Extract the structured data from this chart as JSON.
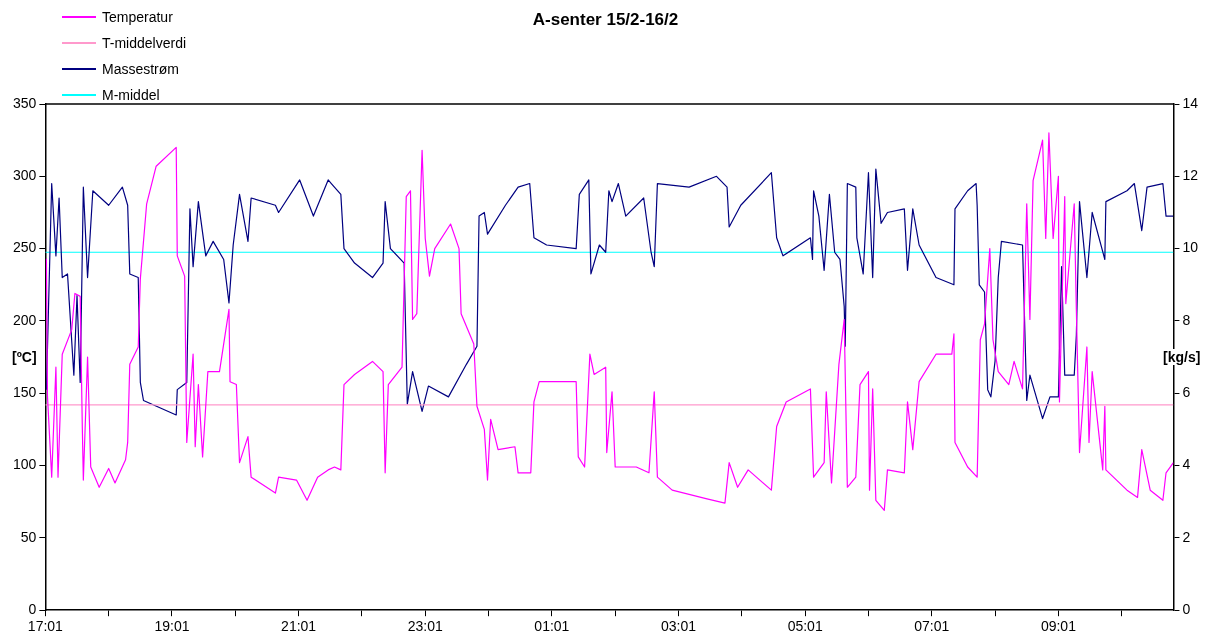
{
  "chart_data": {
    "type": "line",
    "title": "A-senter 15/2-16/2",
    "ylabel": "[ºC]",
    "y2label": "[kg/s]",
    "xlim": [
      "--02-15T17:01",
      "--02-16T10:50"
    ],
    "xticks": [
      {
        "value": "--02-15T17:01",
        "label": "17:01"
      },
      {
        "value": "--02-15T18:01",
        "label": null
      },
      {
        "value": "--02-15T19:01",
        "label": "19:01"
      },
      {
        "value": "--02-15T20:01",
        "label": null
      },
      {
        "value": "--02-15T21:01",
        "label": "21:01"
      },
      {
        "value": "--02-15T22:01",
        "label": null
      },
      {
        "value": "--02-15T23:01",
        "label": "23:01"
      },
      {
        "value": "--02-16T00:01",
        "label": null
      },
      {
        "value": "--02-16T01:01",
        "label": "01:01"
      },
      {
        "value": "--02-16T02:01",
        "label": null
      },
      {
        "value": "--02-16T03:01",
        "label": "03:01"
      },
      {
        "value": "--02-16T04:01",
        "label": null
      },
      {
        "value": "--02-16T05:01",
        "label": "05:01"
      },
      {
        "value": "--02-16T06:01",
        "label": null
      },
      {
        "value": "--02-16T07:01",
        "label": "07:01"
      },
      {
        "value": "--02-16T08:01",
        "label": null
      },
      {
        "value": "--02-16T09:01",
        "label": "09:01"
      },
      {
        "value": "--02-16T10:01",
        "label": null
      }
    ],
    "ylim": [
      0,
      350
    ],
    "yticks": [
      0,
      50,
      100,
      150,
      200,
      250,
      300,
      350
    ],
    "y2lim": [
      0,
      14
    ],
    "y2ticks": [
      0,
      2,
      4,
      6,
      8,
      10,
      12,
      14
    ],
    "grid": false,
    "legend": "top left",
    "marker": "none",
    "line_style": "solid",
    "series": [
      {
        "name": "Temperatur",
        "color": "#ff00ff",
        "x": [
          "--02-15T17:02",
          "--02-15T17:03",
          "--02-15T17:07",
          "--02-15T17:11",
          "--02-15T17:13",
          "--02-15T17:17",
          "--02-15T17:26",
          "--02-15T17:29",
          "--02-15T17:34",
          "--02-15T17:36",
          "--02-15T17:37",
          "--02-15T17:41",
          "--02-15T17:44",
          "--02-15T17:52",
          "--02-15T18:01",
          "--02-15T18:07",
          "--02-15T18:17",
          "--02-15T18:19",
          "--02-15T18:21",
          "--02-15T18:29",
          "--02-15T18:31",
          "--02-15T18:37",
          "--02-15T18:46",
          "--02-15T19:05",
          "--02-15T19:06",
          "--02-15T19:13",
          "--02-15T19:15",
          "--02-15T19:21",
          "--02-15T19:23",
          "--02-15T19:26",
          "--02-15T19:30",
          "--02-15T19:35",
          "--02-15T19:46",
          "--02-15T19:55",
          "--02-15T19:56",
          "--02-15T20:02",
          "--02-15T20:05",
          "--02-15T20:13",
          "--02-15T20:16",
          "--02-15T20:39",
          "--02-15T20:42",
          "--02-15T20:59",
          "--02-15T21:09",
          "--02-15T21:19",
          "--02-15T21:29",
          "--02-15T21:35",
          "--02-15T21:41",
          "--02-15T21:44",
          "--02-15T21:54",
          "--02-15T22:11",
          "--02-15T22:21",
          "--02-15T22:23",
          "--02-15T22:26",
          "--02-15T22:39",
          "--02-15T22:43",
          "--02-15T22:47",
          "--02-15T22:49",
          "--02-15T22:53",
          "--02-15T22:58",
          "--02-15T23:01",
          "--02-15T23:05",
          "--02-15T23:10",
          "--02-15T23:25",
          "--02-15T23:33",
          "--02-15T23:35",
          "--02-15T23:47",
          "--02-15T23:50",
          "--02-15T23:57",
          "--02-16T00:00",
          "--02-16T00:03",
          "--02-16T00:10",
          "--02-16T00:26",
          "--02-16T00:29",
          "--02-16T00:41",
          "--02-16T00:44",
          "--02-16T00:49",
          "--02-16T01:12",
          "--02-16T01:24",
          "--02-16T01:26",
          "--02-16T01:32",
          "--02-16T01:37",
          "--02-16T01:41",
          "--02-16T01:52",
          "--02-16T01:53",
          "--02-16T01:58",
          "--02-16T02:01",
          "--02-16T02:21",
          "--02-16T02:33",
          "--02-16T02:38",
          "--02-16T02:41",
          "--02-16T02:55",
          "--02-16T03:28",
          "--02-16T03:45",
          "--02-16T03:49",
          "--02-16T03:57",
          "--02-16T04:07",
          "--02-16T04:29",
          "--02-16T04:34",
          "--02-16T04:43",
          "--02-16T05:06",
          "--02-16T05:09",
          "--02-16T05:19",
          "--02-16T05:21",
          "--02-16T05:26",
          "--02-16T05:33",
          "--02-16T05:38",
          "--02-16T05:41",
          "--02-16T05:49",
          "--02-16T05:53",
          "--02-16T06:01",
          "--02-16T06:02",
          "--02-16T06:05",
          "--02-16T06:08",
          "--02-16T06:16",
          "--02-16T06:19",
          "--02-16T06:35",
          "--02-16T06:38",
          "--02-16T06:43",
          "--02-16T06:49",
          "--02-16T07:05",
          "--02-16T07:20",
          "--02-16T07:22",
          "--02-16T07:23",
          "--02-16T07:35",
          "--02-16T07:44",
          "--02-16T07:47",
          "--02-16T07:51",
          "--02-16T07:56",
          "--02-16T07:59",
          "--02-16T08:04",
          "--02-16T08:14",
          "--02-16T08:19",
          "--02-16T08:27",
          "--02-16T08:31",
          "--02-16T08:34",
          "--02-16T08:37",
          "--02-16T08:46",
          "--02-16T08:49",
          "--02-16T08:52",
          "--02-16T08:56",
          "--02-16T09:01",
          "--02-16T09:02",
          "--02-16T09:07",
          "--02-16T09:08",
          "--02-16T09:16",
          "--02-16T09:18",
          "--02-16T09:21",
          "--02-16T09:28",
          "--02-16T09:30",
          "--02-16T09:33",
          "--02-16T09:43",
          "--02-16T09:45",
          "--02-16T09:46",
          "--02-16T10:06",
          "--02-16T10:16",
          "--02-16T10:20",
          "--02-16T10:28",
          "--02-16T10:40",
          "--02-16T10:43",
          "--02-16T10:50"
        ],
        "values": [
          243,
          148,
          92,
          168,
          92,
          177,
          194,
          219,
          217,
          127,
          90,
          175,
          99,
          85,
          98,
          88,
          104,
          116,
          170,
          182,
          229,
          281,
          307,
          320,
          245,
          231,
          116,
          177,
          113,
          156,
          106,
          165,
          165,
          208,
          158,
          156,
          102,
          120,
          92,
          81,
          92,
          90,
          76,
          92,
          97,
          99,
          97,
          156,
          163,
          172,
          165,
          95,
          156,
          168,
          286,
          290,
          201,
          205,
          318,
          257,
          231,
          250,
          267,
          250,
          205,
          184,
          141,
          125,
          90,
          132,
          111,
          113,
          95,
          95,
          144,
          158,
          158,
          158,
          106,
          99,
          177,
          163,
          168,
          109,
          151,
          99,
          99,
          95,
          151,
          92,
          83,
          77,
          74,
          102,
          85,
          97,
          83,
          127,
          144,
          153,
          92,
          102,
          151,
          88,
          170,
          201,
          85,
          92,
          156,
          165,
          83,
          153,
          76,
          69,
          97,
          95,
          144,
          111,
          158,
          177,
          177,
          191,
          116,
          99,
          92,
          187,
          198,
          250,
          187,
          165,
          156,
          172,
          153,
          281,
          201,
          297,
          325,
          257,
          330,
          257,
          300,
          144,
          286,
          212,
          281,
          208,
          109,
          182,
          116,
          165,
          97,
          141,
          97,
          83,
          78,
          111,
          83,
          76,
          95,
          102
        ]
      },
      {
        "name": "T-middelverdi",
        "color": "#ff99cc",
        "x": [
          "--02-15T17:01",
          "--02-16T10:50"
        ],
        "values": [
          142,
          142
        ]
      },
      {
        "name": "Massestrøm",
        "color": "#000080",
        "axis": "y2",
        "x": [
          "--02-15T17:02",
          "--02-15T17:07",
          "--02-15T17:11",
          "--02-15T17:14",
          "--02-15T17:17",
          "--02-15T17:22",
          "--02-15T17:28",
          "--02-15T17:31",
          "--02-15T17:34",
          "--02-15T17:37",
          "--02-15T17:41",
          "--02-15T17:46",
          "--02-15T18:01",
          "--02-15T18:14",
          "--02-15T18:19",
          "--02-15T18:21",
          "--02-15T18:29",
          "--02-15T18:31",
          "--02-15T18:34",
          "--02-15T19:05",
          "--02-15T19:06",
          "--02-15T19:15",
          "--02-15T19:18",
          "--02-15T19:21",
          "--02-15T19:26",
          "--02-15T19:33",
          "--02-15T19:40",
          "--02-15T19:50",
          "--02-15T19:55",
          "--02-15T19:59",
          "--02-15T20:05",
          "--02-15T20:13",
          "--02-15T20:16",
          "--02-15T20:39",
          "--02-15T20:42",
          "--02-15T21:02",
          "--02-15T21:15",
          "--02-15T21:29",
          "--02-15T21:32",
          "--02-15T21:41",
          "--02-15T21:44",
          "--02-15T21:54",
          "--02-15T22:11",
          "--02-15T22:21",
          "--02-15T22:23",
          "--02-15T22:28",
          "--02-15T22:41",
          "--02-15T22:44",
          "--02-15T22:49",
          "--02-15T22:58",
          "--02-15T23:04",
          "--02-15T23:23",
          "--02-15T23:40",
          "--02-15T23:50",
          "--02-15T23:52",
          "--02-15T23:57",
          "--02-16T00:00",
          "--02-16T00:17",
          "--02-16T00:29",
          "--02-16T00:40",
          "--02-16T00:44",
          "--02-16T00:56",
          "--02-16T01:24",
          "--02-16T01:27",
          "--02-16T01:36",
          "--02-16T01:38",
          "--02-16T01:46",
          "--02-16T01:52",
          "--02-16T01:55",
          "--02-16T01:58",
          "--02-16T02:04",
          "--02-16T02:11",
          "--02-16T02:28",
          "--02-16T02:35",
          "--02-16T02:38",
          "--02-16T02:41",
          "--02-16T03:11",
          "--02-16T03:37",
          "--02-16T03:47",
          "--02-16T03:49",
          "--02-16T04:00",
          "--02-16T04:29",
          "--02-16T04:34",
          "--02-16T04:40",
          "--02-16T05:06",
          "--02-16T05:08",
          "--02-16T05:09",
          "--02-16T05:14",
          "--02-16T05:19",
          "--02-16T05:24",
          "--02-16T05:29",
          "--02-16T05:34",
          "--02-16T05:38",
          "--02-16T05:39",
          "--02-16T05:41",
          "--02-16T05:49",
          "--02-16T05:50",
          "--02-16T05:56",
          "--02-16T06:01",
          "--02-16T06:05",
          "--02-16T06:08",
          "--02-16T06:13",
          "--02-16T06:19",
          "--02-16T06:35",
          "--02-16T06:38",
          "--02-16T06:43",
          "--02-16T06:49",
          "--02-16T07:05",
          "--02-16T07:22",
          "--02-16T07:23",
          "--02-16T07:35",
          "--02-16T07:43",
          "--02-16T07:44",
          "--02-16T07:46",
          "--02-16T07:51",
          "--02-16T07:54",
          "--02-16T07:57",
          "--02-16T08:01",
          "--02-16T08:04",
          "--02-16T08:07",
          "--02-16T08:27",
          "--02-16T08:31",
          "--02-16T08:34",
          "--02-16T08:46",
          "--02-16T08:53",
          "--02-16T09:01",
          "--02-16T09:04",
          "--02-16T09:07",
          "--02-16T09:16",
          "--02-16T09:18",
          "--02-16T09:21",
          "--02-16T09:28",
          "--02-16T09:33",
          "--02-16T09:45",
          "--02-16T09:46",
          "--02-16T10:06",
          "--02-16T10:13",
          "--02-16T10:20",
          "--02-16T10:25",
          "--02-16T10:40",
          "--02-16T10:43",
          "--02-16T10:50"
        ],
        "values": [
          6.1,
          11.8,
          9.8,
          11.4,
          9.2,
          9.3,
          6.5,
          8.7,
          6.3,
          11.7,
          9.2,
          11.6,
          11.2,
          11.7,
          11.2,
          9.3,
          9.2,
          6.3,
          5.8,
          5.4,
          6.1,
          6.3,
          11.1,
          9.5,
          11.3,
          9.8,
          10.2,
          9.7,
          8.5,
          10.1,
          11.5,
          10.2,
          11.4,
          11.2,
          11.0,
          11.9,
          10.9,
          11.9,
          11.8,
          11.5,
          10.0,
          9.6,
          9.2,
          9.6,
          11.3,
          10.0,
          9.6,
          5.7,
          6.6,
          5.5,
          6.2,
          5.9,
          6.8,
          7.3,
          10.9,
          11.0,
          10.4,
          11.2,
          11.7,
          11.8,
          10.3,
          10.1,
          10.0,
          11.5,
          11.9,
          9.3,
          10.1,
          9.9,
          11.6,
          11.3,
          11.8,
          10.9,
          11.4,
          9.9,
          9.5,
          11.8,
          11.7,
          12.0,
          11.7,
          10.6,
          11.2,
          12.1,
          10.3,
          9.8,
          10.3,
          9.7,
          11.6,
          10.9,
          9.4,
          11.5,
          9.9,
          9.7,
          8.4,
          7.3,
          11.8,
          11.7,
          10.3,
          9.3,
          12.1,
          9.2,
          12.2,
          10.7,
          11.0,
          11.1,
          9.4,
          11.1,
          10.1,
          9.2,
          9.0,
          11.1,
          11.6,
          11.8,
          11.2,
          9.0,
          8.8,
          6.1,
          5.9,
          6.9,
          9.2,
          10.2,
          10.1,
          5.8,
          6.5,
          5.3,
          5.9,
          5.9,
          9.5,
          6.5,
          6.5,
          7.6,
          11.3,
          9.2,
          11.0,
          9.7,
          11.3,
          11.6,
          11.8,
          10.5,
          11.7,
          11.8,
          10.9,
          10.9
        ]
      },
      {
        "name": "M-middel",
        "color": "#00ffff",
        "axis": "y2",
        "x": [
          "--02-15T17:01",
          "--02-16T10:50"
        ],
        "values": [
          9.9,
          9.9
        ]
      }
    ]
  }
}
